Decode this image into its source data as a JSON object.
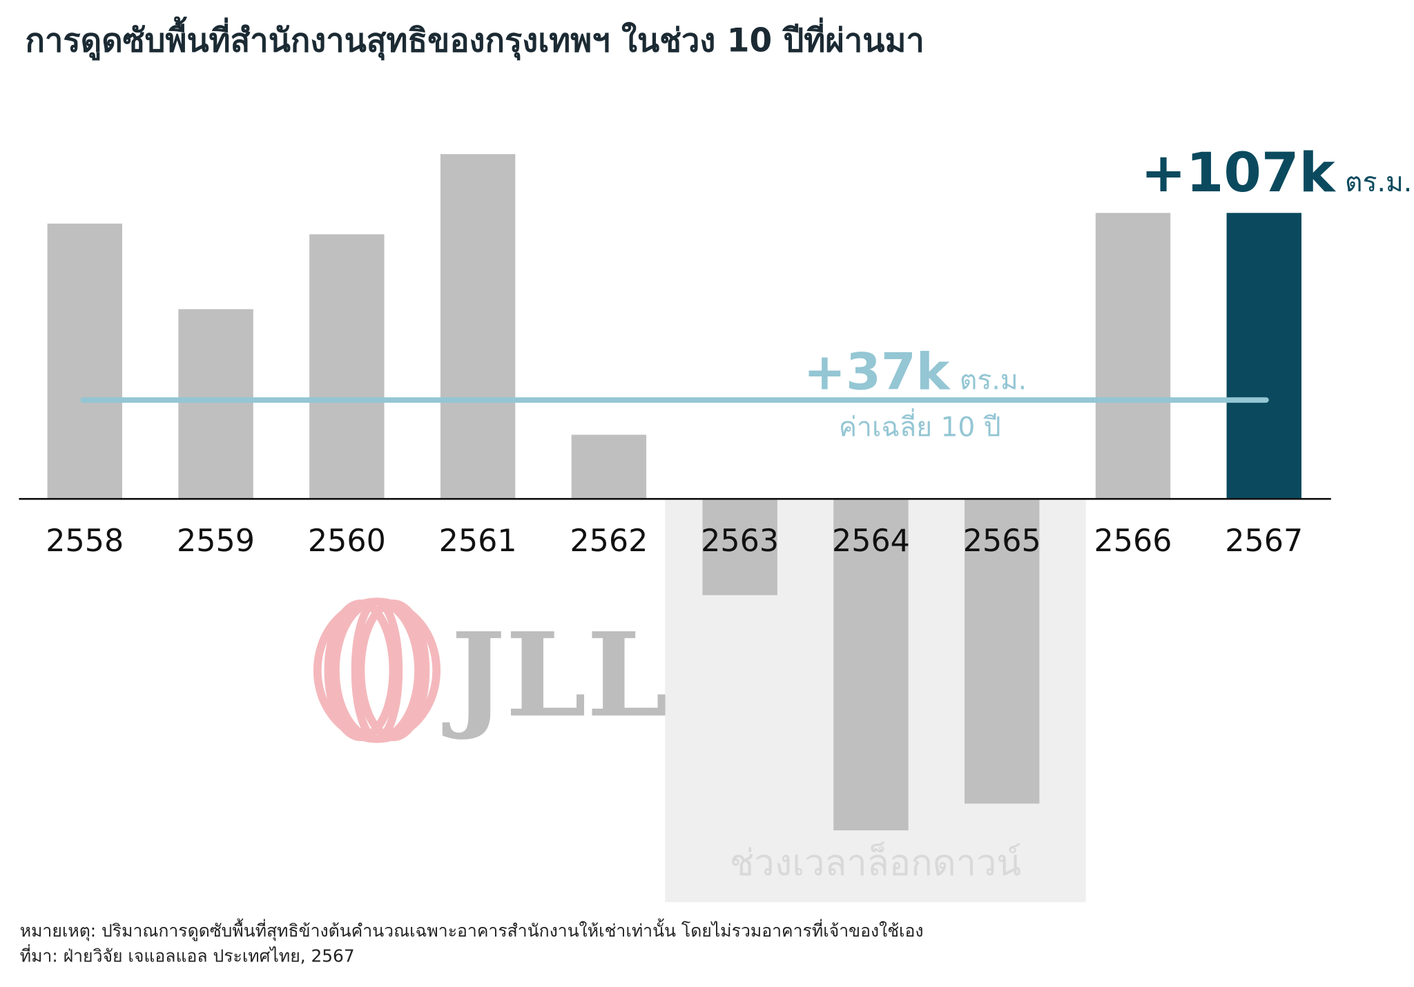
{
  "title": "การดูดซับพื้นที่สำนักงานสุทธิของกรุงเทพฯ ในช่วง 10 ปีที่ผ่านมา",
  "chart_data": {
    "type": "bar",
    "title": "การดูดซับพื้นที่สำนักงานสุทธิของกรุงเทพฯ ในช่วง 10 ปีที่ผ่านมา",
    "unit": "ตร.ม.",
    "categories": [
      "2558",
      "2559",
      "2560",
      "2561",
      "2562",
      "2563",
      "2564",
      "2565",
      "2566",
      "2567"
    ],
    "values": [
      103000,
      71000,
      99000,
      129000,
      24000,
      -36000,
      -124000,
      -114000,
      107000,
      107000
    ],
    "ylim": [
      -140000,
      140000
    ],
    "grid": false,
    "bar_color": "#bfbfbf",
    "highlight_color": "#0b4a5e",
    "highlight_category": "2567",
    "highlight_label": {
      "value": "+107k",
      "unit": "ตร.ม."
    },
    "average": {
      "value": 37000,
      "label": "+37k",
      "unit": "ตร.ม.",
      "caption": "ค่าเฉลี่ย 10 ปี",
      "color": "#94c6d4"
    },
    "shaded_region": {
      "categories": [
        "2563",
        "2564",
        "2565"
      ],
      "label": "ช่วงเวลาล็อกดาวน์",
      "color": "#efefef"
    }
  },
  "logo": {
    "text": "JLL",
    "ring_color": "#f4b8bc",
    "text_color": "#bdbdbd"
  },
  "footer": {
    "note": "หมายเหตุ: ปริมาณการดูดซับพื้นที่สุทธิข้างต้นคำนวณเฉพาะอาคารสำนักงานให้เช่าเท่านั้น โดยไม่รวมอาคารที่เจ้าของใช้เอง",
    "source": "ที่มา: ฝ่ายวิจัย เจแอลแอล ประเทศไทย, 2567"
  }
}
